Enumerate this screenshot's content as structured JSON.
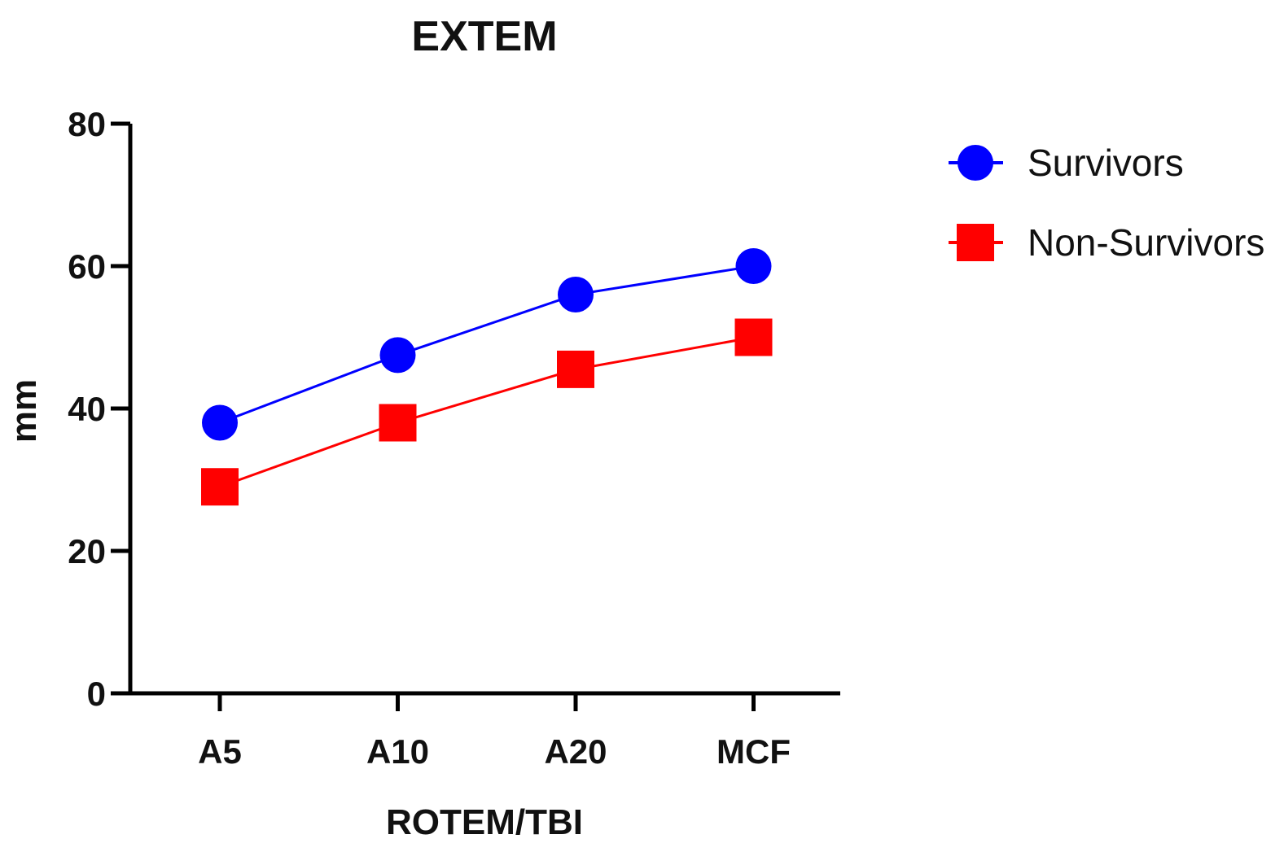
{
  "chart_data": {
    "type": "line",
    "title": "EXTEM",
    "xlabel": "ROTEM/TBI",
    "ylabel": "mm",
    "categories": [
      "A5",
      "A10",
      "A20",
      "MCF"
    ],
    "ylim": [
      0,
      80
    ],
    "yticks": [
      0,
      20,
      40,
      60,
      80
    ],
    "series": [
      {
        "name": "Survivors",
        "marker": "circle",
        "color": "#0000ff",
        "values": [
          38,
          47.5,
          56,
          60
        ]
      },
      {
        "name": "Non-Survivors",
        "marker": "square",
        "color": "#ff0000",
        "values": [
          29,
          38,
          45.5,
          50
        ]
      }
    ],
    "legend": "right"
  }
}
